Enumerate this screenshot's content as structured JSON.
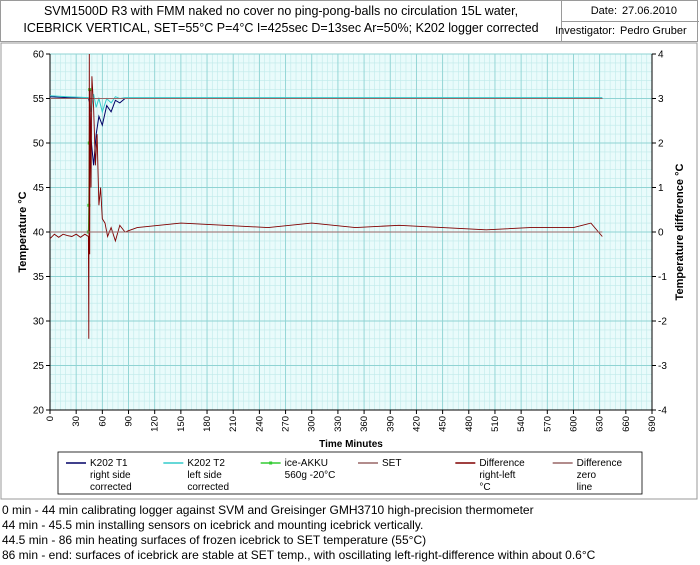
{
  "header": {
    "title_line1": "SVM1500D R3 with FMM naked no cover no ping-pong-balls no circulation 15L water,",
    "title_line2": "ICEBRICK VERTICAL, SET=55°C P=4°C I=425sec D=13sec Ar=50%; K202 logger corrected",
    "date_label": "Date:",
    "date_value": "27.06.2010",
    "investigator_label": "Investigator:",
    "investigator_value": "Pedro Gruber"
  },
  "chart_data": {
    "type": "line",
    "xlabel": "Time Minutes",
    "ylabel": "Temperature °C",
    "y2label": "Temperature difference °C",
    "xlim": [
      0,
      690
    ],
    "ylim": [
      20,
      60
    ],
    "y2lim": [
      -4,
      4
    ],
    "x_ticks": [
      0,
      30,
      60,
      90,
      120,
      150,
      180,
      210,
      240,
      270,
      300,
      330,
      360,
      390,
      420,
      450,
      480,
      510,
      540,
      570,
      600,
      630,
      660,
      690
    ],
    "y_ticks": [
      20,
      25,
      30,
      35,
      40,
      45,
      50,
      55,
      60
    ],
    "y2_ticks": [
      -4,
      -3,
      -2,
      -1,
      0,
      1,
      2,
      3,
      4
    ],
    "grid": true,
    "legend_position": "bottom",
    "series": [
      {
        "name_lines": [
          "K202 T1",
          "right side",
          "corrected"
        ],
        "color": "#000066",
        "axis": "left",
        "x": [
          0,
          20,
          44,
          45.5,
          47,
          50,
          53,
          56,
          60,
          65,
          70,
          75,
          80,
          86,
          100,
          150,
          200,
          300,
          400,
          500,
          600,
          633
        ],
        "y": [
          55.2,
          55.1,
          55.0,
          54.5,
          50.5,
          47.5,
          51.0,
          53.0,
          52.0,
          54.2,
          53.5,
          54.8,
          54.5,
          55.0,
          55.0,
          55.0,
          55.0,
          55.0,
          55.0,
          55.0,
          55.0,
          55.0
        ]
      },
      {
        "name_lines": [
          "K202 T2",
          "left side",
          "corrected"
        ],
        "color": "#33cccc",
        "axis": "left",
        "x": [
          0,
          20,
          44,
          45.5,
          47,
          50,
          53,
          56,
          60,
          65,
          70,
          75,
          80,
          86,
          100,
          150,
          200,
          300,
          400,
          500,
          600,
          633
        ],
        "y": [
          55.3,
          55.2,
          55.1,
          54.8,
          53.5,
          55.5,
          54.0,
          55.0,
          53.5,
          55.0,
          54.5,
          55.2,
          55.0,
          55.1,
          55.1,
          55.1,
          55.1,
          55.1,
          55.1,
          55.1,
          55.1,
          55.1
        ]
      },
      {
        "name_lines": [
          "ice-AKKU",
          "560g -20°C"
        ],
        "color": "#33cc33",
        "axis": "left",
        "marker": true,
        "x": [
          44,
          44.5,
          45,
          45.5
        ],
        "y": [
          40,
          43,
          50,
          56
        ]
      },
      {
        "name_lines": [
          "SET"
        ],
        "color": "#996666",
        "axis": "left",
        "x": [
          0,
          633
        ],
        "y": [
          55,
          55
        ]
      },
      {
        "name_lines": [
          "Difference",
          "right-left",
          "°C"
        ],
        "color": "#800000",
        "axis": "right",
        "x": [
          0,
          5,
          10,
          15,
          20,
          25,
          30,
          35,
          40,
          44,
          44.5,
          45,
          45.5,
          46,
          47,
          48,
          50,
          52,
          54,
          56,
          58,
          60,
          63,
          66,
          70,
          75,
          80,
          86,
          100,
          150,
          200,
          250,
          300,
          350,
          400,
          450,
          500,
          550,
          600,
          620,
          633
        ],
        "y": [
          -0.15,
          -0.05,
          -0.12,
          -0.05,
          -0.08,
          -0.1,
          -0.05,
          -0.12,
          -0.05,
          -0.1,
          -2.4,
          4.0,
          -0.5,
          3.2,
          1.0,
          3.5,
          2.8,
          1.5,
          2.2,
          0.6,
          1.0,
          0.3,
          0.2,
          -0.1,
          0.1,
          -0.2,
          0.15,
          0.0,
          0.1,
          0.2,
          0.15,
          0.1,
          0.2,
          0.1,
          0.15,
          0.1,
          0.05,
          0.1,
          0.1,
          0.2,
          -0.1
        ]
      },
      {
        "name_lines": [
          "Difference",
          "zero",
          "line"
        ],
        "color": "#996666",
        "axis": "right",
        "x": [
          0,
          633
        ],
        "y": [
          0,
          0
        ]
      }
    ]
  },
  "notes": [
    "0 min - 44 min calibrating logger against SVM and Greisinger GMH3710 high-precision thermometer",
    "44 min - 45.5 min installing sensors on icebrick and mounting icebrick vertically.",
    "44.5 min - 86 min heating surfaces of frozen icebrick to SET temperature (55°C)",
    "86 min - end: surfaces of icebrick are stable at SET temp., with oscillating left-right-difference within about 0.6°C"
  ]
}
